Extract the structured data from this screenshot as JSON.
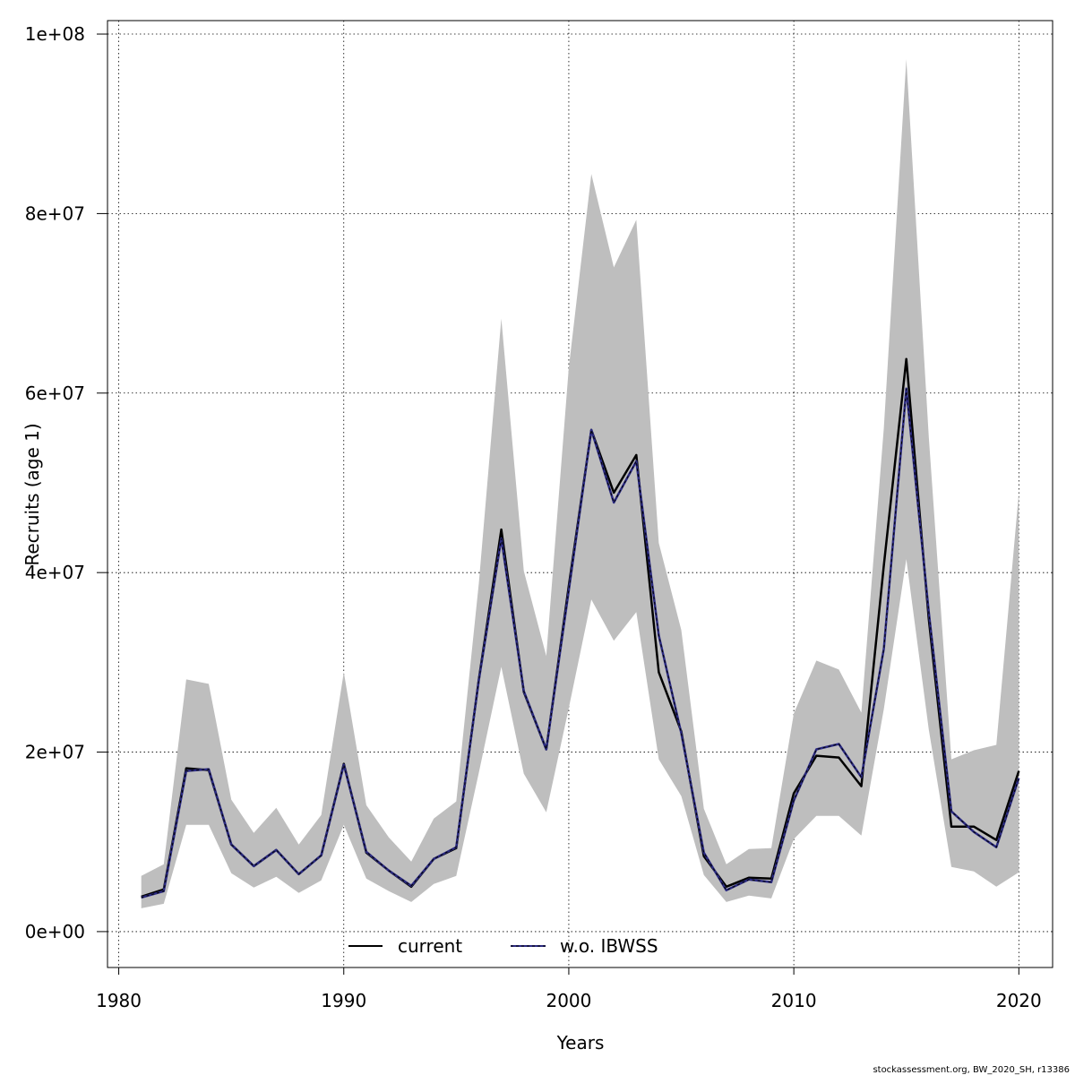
{
  "chart_data": {
    "type": "line",
    "xlabel": "Years",
    "ylabel": "Recruits (age 1)",
    "xlim": [
      1979.5,
      2021.5
    ],
    "ylim": [
      -4000000,
      101500000
    ],
    "x_ticks": [
      1980,
      1990,
      2000,
      2010,
      2020
    ],
    "y_ticks": [
      0,
      20000000,
      40000000,
      60000000,
      80000000,
      100000000
    ],
    "x_tick_labels": [
      "1980",
      "1990",
      "2000",
      "2010",
      "2020"
    ],
    "y_tick_labels": [
      "0e+00",
      "2e+07",
      "4e+07",
      "6e+07",
      "8e+07",
      "1e+08"
    ],
    "grid": true,
    "legend_position": "bottom",
    "x": [
      1981,
      1982,
      1983,
      1984,
      1985,
      1986,
      1987,
      1988,
      1989,
      1990,
      1991,
      1992,
      1993,
      1994,
      1995,
      1996,
      1997,
      1998,
      1999,
      2000,
      2001,
      2002,
      2003,
      2004,
      2005,
      2006,
      2007,
      2008,
      2009,
      2010,
      2011,
      2012,
      2013,
      2014,
      2015,
      2016,
      2017,
      2018,
      2019,
      2020
    ],
    "band": {
      "color": "#bebebe",
      "lower": [
        2600000,
        3100000,
        11900000,
        11900000,
        6500000,
        4900000,
        6100000,
        4300000,
        5700000,
        11900000,
        5900000,
        4500000,
        3300000,
        5300000,
        6200000,
        17700000,
        29500000,
        17600000,
        13300000,
        24900000,
        37000000,
        32400000,
        35600000,
        19200000,
        15100000,
        6300000,
        3300000,
        4000000,
        3700000,
        10300000,
        12900000,
        12900000,
        10700000,
        24800000,
        41500000,
        22500000,
        7200000,
        6700000,
        5000000,
        6600000
      ],
      "upper": [
        6200000,
        7500000,
        28100000,
        27600000,
        14700000,
        11000000,
        13800000,
        9700000,
        13000000,
        28900000,
        14100000,
        10500000,
        7800000,
        12600000,
        14500000,
        38800000,
        68300000,
        40200000,
        30700000,
        62800000,
        84400000,
        74000000,
        79300000,
        43300000,
        33600000,
        13700000,
        7500000,
        9200000,
        9300000,
        24300000,
        30200000,
        29200000,
        24400000,
        56100000,
        97200000,
        55100000,
        19200000,
        20200000,
        20800000,
        48900000
      ]
    },
    "series": [
      {
        "name": "current",
        "color": "#000000",
        "values": [
          3900000,
          4700000,
          18200000,
          18000000,
          9700000,
          7300000,
          9100000,
          6400000,
          8500000,
          18700000,
          8800000,
          6800000,
          5000000,
          8100000,
          9300000,
          28100000,
          44800000,
          26700000,
          20300000,
          38500000,
          55900000,
          48900000,
          53100000,
          28900000,
          22300000,
          8400000,
          5000000,
          6000000,
          5900000,
          15400000,
          19600000,
          19400000,
          16200000,
          40800000,
          63800000,
          34800000,
          11700000,
          11700000,
          10200000,
          17900000
        ]
      },
      {
        "name": "w.o. IBWSS",
        "color": "#2b2a82",
        "values": [
          3800000,
          4500000,
          17900000,
          18100000,
          9700000,
          7300000,
          9100000,
          6400000,
          8500000,
          18600000,
          8900000,
          6800000,
          5100000,
          8100000,
          9400000,
          28000000,
          43800000,
          26800000,
          20300000,
          38000000,
          55900000,
          47800000,
          52400000,
          33000000,
          22100000,
          8800000,
          4600000,
          5800000,
          5500000,
          14600000,
          20300000,
          20900000,
          17200000,
          31500000,
          60500000,
          35600000,
          13400000,
          11100000,
          9400000,
          17100000
        ]
      }
    ]
  },
  "footer": {
    "credit": "stockassessment.org, BW_2020_SH, r13386"
  }
}
